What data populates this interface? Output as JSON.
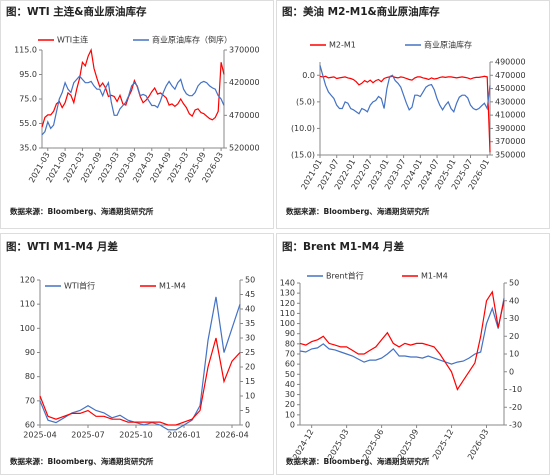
{
  "chart_data": [
    {
      "type": "line",
      "title": "图：WTI 主连&商业原油库存",
      "source": "数据来源：Bloomberg、海通期货研究所",
      "categories": [
        null,
        null,
        "2021-03",
        null,
        null,
        null,
        null,
        null,
        "2021-09",
        null,
        null,
        null,
        null,
        null,
        "2022-03",
        null,
        null,
        null,
        null,
        null,
        "2022-09",
        null,
        null,
        null,
        null,
        null,
        "2023-03",
        null,
        null,
        null,
        null,
        null,
        "2023-09",
        null,
        null,
        null,
        null,
        null,
        "2024-03",
        null,
        null,
        null,
        null,
        null,
        "2024-09",
        null,
        null,
        null,
        null,
        null,
        "2025-03",
        null,
        null,
        null,
        null,
        null,
        "2025-09",
        null,
        null,
        null,
        null,
        null,
        "2026-03",
        null
      ],
      "ylim": [
        35,
        115
      ],
      "yticks": [
        {
          "value": 35,
          "label": "35.0"
        },
        {
          "value": 55,
          "label": "55.0"
        },
        {
          "value": 75,
          "label": "75.0"
        },
        {
          "value": 95,
          "label": "95.0"
        },
        {
          "value": 115,
          "label": "115.0"
        }
      ],
      "y2lim": [
        520000,
        370000
      ],
      "y2ticks": [
        370000,
        420000,
        470000,
        520000
      ],
      "series": [
        {
          "name": "WTI主连",
          "color": "#ff0000",
          "values": [
            52,
            60,
            62,
            62,
            65,
            71,
            73,
            68,
            72,
            80,
            78,
            72,
            83,
            92,
            105,
            102,
            110,
            115,
            100,
            92,
            85,
            88,
            84,
            77,
            78,
            77,
            73,
            78,
            71,
            70,
            77,
            82,
            90,
            85,
            77,
            72,
            74,
            77,
            81,
            84,
            79,
            80,
            78,
            76,
            70,
            71,
            69,
            71,
            75,
            71,
            68,
            63,
            61,
            66,
            67,
            64,
            63,
            61,
            59,
            58,
            60,
            65,
            105,
            95
          ]
        },
        {
          "name": "商业原油库存（倒序）",
          "color": "#4472c4",
          "axis": "y2",
          "values": [
            500000,
            495000,
            480000,
            490000,
            485000,
            465000,
            445000,
            435000,
            420000,
            430000,
            435000,
            420000,
            415000,
            410000,
            415000,
            420000,
            420000,
            418000,
            425000,
            430000,
            430000,
            440000,
            428000,
            420000,
            450000,
            470000,
            470000,
            460000,
            455000,
            450000,
            440000,
            425000,
            420000,
            425000,
            440000,
            438000,
            440000,
            448000,
            455000,
            455000,
            458000,
            448000,
            435000,
            425000,
            418000,
            425000,
            430000,
            420000,
            415000,
            430000,
            437000,
            440000,
            440000,
            435000,
            425000,
            420000,
            418000,
            420000,
            425000,
            428000,
            430000,
            440000,
            445000,
            455000
          ]
        }
      ]
    },
    {
      "type": "line",
      "title": "图：美油 M2-M1&商业原油库存",
      "source": "数据来源：Bloomberg、海通期货研究所",
      "categories": [
        "2021-01",
        null,
        null,
        null,
        null,
        null,
        "2021-07",
        null,
        null,
        null,
        null,
        null,
        "2022-01",
        null,
        null,
        null,
        null,
        null,
        "2022-07",
        null,
        null,
        null,
        null,
        null,
        "2023-01",
        null,
        null,
        null,
        null,
        null,
        "2023-07",
        null,
        null,
        null,
        null,
        null,
        "2024-01",
        null,
        null,
        null,
        null,
        null,
        "2024-07",
        null,
        null,
        null,
        null,
        null,
        "2025-01",
        null,
        null,
        null,
        null,
        null,
        "2025-07",
        null,
        null,
        null,
        null,
        null,
        "2026-01",
        null
      ],
      "ylim": [
        -15,
        2.5
      ],
      "yticks": [
        {
          "value": 0,
          "label": "0.0"
        },
        {
          "value": -5,
          "label": "(5.0)"
        },
        {
          "value": -10,
          "label": "(10.0)"
        },
        {
          "value": -15,
          "label": "(15.0)"
        }
      ],
      "y2lim": [
        350000,
        490000
      ],
      "y2ticks": [
        350000,
        370000,
        390000,
        410000,
        430000,
        450000,
        470000,
        490000
      ],
      "series": [
        {
          "name": "M2-M1",
          "color": "#ff0000",
          "values": [
            -0.2,
            -0.3,
            -0.2,
            -0.5,
            -0.4,
            -0.3,
            -0.6,
            -0.5,
            -0.4,
            -0.3,
            -0.5,
            -0.6,
            -0.8,
            -1.2,
            -1.8,
            -1.5,
            -1.0,
            -1.3,
            -0.9,
            -1.4,
            -1.0,
            -0.8,
            -1.2,
            -0.6,
            -0.4,
            -0.3,
            -0.2,
            -0.4,
            -0.5,
            -0.3,
            -0.4,
            -0.6,
            -0.8,
            -0.9,
            -0.5,
            -0.3,
            -0.3,
            -0.5,
            -0.6,
            -0.8,
            -0.5,
            -0.7,
            -0.6,
            -0.4,
            -0.3,
            -0.4,
            -0.3,
            -0.3,
            -0.4,
            -0.5,
            -0.4,
            -0.3,
            -0.4,
            -0.5,
            -0.7,
            -0.5,
            -0.4,
            -0.4,
            -0.3,
            -0.2,
            -0.3,
            -14.5
          ]
        },
        {
          "name": "商业原油库存",
          "color": "#4472c4",
          "axis": "y2",
          "values": [
            485000,
            470000,
            455000,
            445000,
            440000,
            435000,
            425000,
            420000,
            420000,
            430000,
            428000,
            420000,
            418000,
            415000,
            412000,
            420000,
            418000,
            415000,
            425000,
            430000,
            432000,
            438000,
            435000,
            420000,
            450000,
            468000,
            470000,
            462000,
            458000,
            452000,
            440000,
            428000,
            418000,
            422000,
            440000,
            440000,
            438000,
            445000,
            452000,
            455000,
            456000,
            448000,
            435000,
            425000,
            418000,
            425000,
            430000,
            420000,
            415000,
            428000,
            437000,
            440000,
            440000,
            436000,
            425000,
            420000,
            418000,
            420000,
            424000,
            428000,
            420000,
            455000
          ]
        }
      ]
    },
    {
      "type": "line",
      "title": "图：WTI M1-M4 月差",
      "source": "数据来源：Bloomberg、海通期货研究所",
      "categories": [
        "2025-04",
        null,
        null,
        null,
        null,
        null,
        "2025-07",
        null,
        null,
        null,
        null,
        null,
        "2025-10",
        null,
        null,
        null,
        null,
        null,
        "2026-01",
        null,
        null,
        null,
        null,
        null,
        "2026-04",
        null
      ],
      "ylim": [
        60,
        120
      ],
      "yticks": [
        60,
        70,
        80,
        90,
        100,
        110,
        120
      ],
      "y2lim": [
        0,
        50
      ],
      "y2ticks": [
        0,
        5,
        10,
        15,
        20,
        25,
        30,
        35,
        40,
        45,
        50
      ],
      "series": [
        {
          "name": "WTI首行",
          "color": "#4472c4",
          "values": [
            70,
            62,
            61,
            63,
            65,
            66,
            68,
            66,
            65,
            63,
            64,
            62,
            61,
            60,
            61,
            60,
            58,
            58,
            60,
            62,
            68,
            95,
            113,
            90,
            100,
            110
          ]
        },
        {
          "name": "M1-M4",
          "color": "#ff0000",
          "axis": "y2",
          "values": [
            10,
            3,
            2,
            3,
            4,
            4,
            5,
            3,
            3,
            2,
            2,
            1,
            1,
            1,
            1,
            1,
            0,
            0,
            1,
            2,
            5,
            20,
            30,
            15,
            22,
            25
          ]
        }
      ]
    },
    {
      "type": "line",
      "title": "图：Brent M1-M4 月差",
      "source": "数据来源：Bloomberg、海通期货研究所",
      "categories": [
        null,
        null,
        "2024-12",
        null,
        null,
        null,
        null,
        null,
        "2025-03",
        null,
        null,
        null,
        null,
        null,
        "2025-06",
        null,
        null,
        null,
        null,
        null,
        "2025-09",
        null,
        null,
        null,
        null,
        null,
        "2025-12",
        null,
        null,
        null,
        null,
        null,
        "2026-03",
        null,
        null,
        null
      ],
      "ylim": [
        0,
        140
      ],
      "yticks": [
        0,
        10,
        20,
        30,
        40,
        50,
        60,
        70,
        80,
        90,
        100,
        110,
        120,
        130,
        140
      ],
      "y2lim": [
        -30,
        50
      ],
      "y2ticks": [
        -30,
        -20,
        -10,
        0,
        10,
        20,
        30,
        40,
        50
      ],
      "series": [
        {
          "name": "Brent首行",
          "color": "#4472c4",
          "values": [
            73,
            72,
            75,
            76,
            80,
            75,
            74,
            72,
            70,
            68,
            65,
            62,
            64,
            64,
            66,
            70,
            75,
            68,
            68,
            67,
            67,
            66,
            68,
            66,
            64,
            62,
            60,
            62,
            63,
            66,
            70,
            72,
            100,
            115,
            95,
            125
          ]
        },
        {
          "name": "M1-M4",
          "color": "#ff0000",
          "axis": "y2",
          "values": [
            16,
            15,
            17,
            18,
            20,
            16,
            15,
            14,
            14,
            12,
            10,
            10,
            12,
            14,
            18,
            22,
            16,
            14,
            16,
            15,
            16,
            16,
            15,
            14,
            10,
            5,
            0,
            -10,
            -5,
            0,
            5,
            20,
            40,
            45,
            25,
            40
          ]
        }
      ]
    }
  ]
}
